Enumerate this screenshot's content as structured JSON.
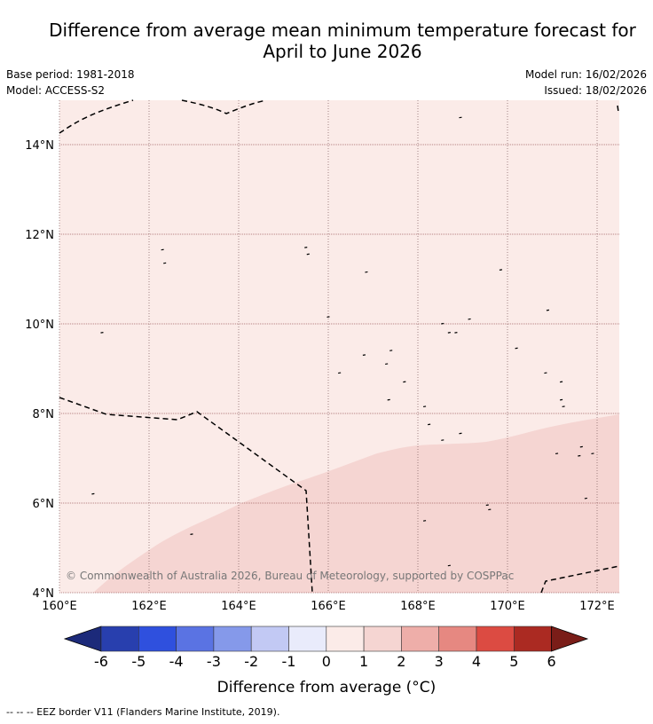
{
  "title_line1": "Difference from average mean minimum temperature forecast for",
  "title_line2": "April to June 2026",
  "base_period": "Base period: 1981-2018",
  "model": "Model: ACCESS-S2",
  "model_run": "Model run: 16/02/2026",
  "issued": "Issued: 18/02/2026",
  "copyright": "© Commonwealth of Australia 2026, Bureau of Meteorology, supported by COSPPac",
  "lon_ticks": [
    "160°E",
    "162°E",
    "164°E",
    "166°E",
    "168°E",
    "170°E",
    "172°E"
  ],
  "lat_ticks": [
    "4°N",
    "6°N",
    "8°N",
    "10°N",
    "12°N",
    "14°N"
  ],
  "colorbar": {
    "label": "Difference from average (°C)",
    "ticks": [
      "-6",
      "-5",
      "-4",
      "-3",
      "-2",
      "-1",
      "0",
      "1",
      "2",
      "3",
      "4",
      "5",
      "6"
    ],
    "under_color": "#1c2a7a",
    "over_color": "#7a1d18",
    "colors": [
      "#283fae",
      "#2f50de",
      "#5a73e3",
      "#8599ea",
      "#c2c9f4",
      "#e9ebfb",
      "#fbebe8",
      "#f5d5d2",
      "#eeaea9",
      "#e68881",
      "#dc4b42",
      "#ab2a22"
    ]
  },
  "map": {
    "background_category_color": "#fbebe8",
    "south_region_color": "#f5d5d2"
  },
  "footer": "--  --  -- EEZ border V11 (Flanders Marine Institute, 2019)."
}
